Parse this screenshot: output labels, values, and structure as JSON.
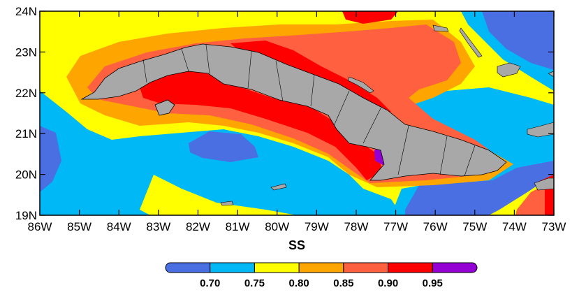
{
  "map": {
    "axis_title": "SS",
    "lat_labels": [
      "24N",
      "23N",
      "22N",
      "21N",
      "20N",
      "19N"
    ],
    "lon_labels": [
      "86W",
      "85W",
      "84W",
      "83W",
      "82W",
      "81W",
      "80W",
      "79W",
      "78W",
      "77W",
      "76W",
      "75W",
      "74W",
      "73W"
    ],
    "region": {
      "lon_range": [
        -86,
        -73
      ],
      "lat_range": [
        19,
        24
      ]
    },
    "land_color": "#a8a8a8"
  },
  "colorbar": {
    "labels": [
      "0.70",
      "0.75",
      "0.80",
      "0.85",
      "0.90",
      "0.95"
    ],
    "colors": [
      "#4a6fe3",
      "#00b8f5",
      "#ffff00",
      "#ffa500",
      "#ff6040",
      "#ff0000",
      "#9400d3"
    ]
  }
}
